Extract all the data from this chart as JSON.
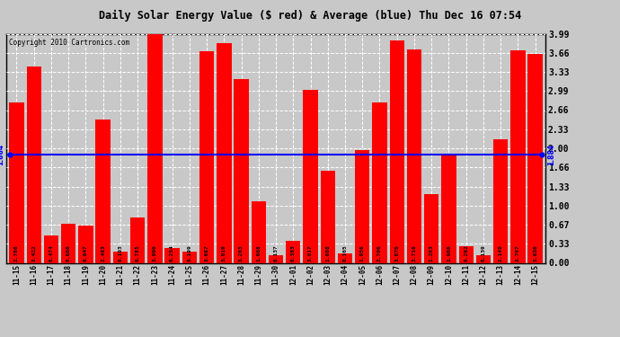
{
  "title": "Daily Solar Energy Value ($ red) & Average (blue) Thu Dec 16 07:54",
  "copyright": "Copyright 2010 Cartronics.com",
  "average": 1.884,
  "average_label": "1.884",
  "bar_color": "#FF0000",
  "average_color": "#0000FF",
  "background_color": "#C8C8C8",
  "plot_bg_color": "#C8C8C8",
  "grid_color": "#FFFFFF",
  "ylim": [
    0.0,
    3.99
  ],
  "yticks": [
    0.0,
    0.33,
    0.67,
    1.0,
    1.33,
    1.66,
    2.0,
    2.33,
    2.66,
    2.99,
    3.33,
    3.66,
    3.99
  ],
  "categories": [
    "11-15",
    "11-16",
    "11-17",
    "11-18",
    "11-19",
    "11-20",
    "11-21",
    "11-22",
    "11-23",
    "11-24",
    "11-25",
    "11-26",
    "11-27",
    "11-28",
    "11-29",
    "11-30",
    "12-01",
    "12-02",
    "12-03",
    "12-04",
    "12-05",
    "12-06",
    "12-07",
    "12-08",
    "12-09",
    "12-10",
    "12-11",
    "12-12",
    "12-13",
    "12-14",
    "12-15"
  ],
  "values": [
    2.786,
    3.422,
    0.474,
    0.686,
    0.647,
    2.493,
    0.193,
    0.785,
    3.99,
    0.254,
    0.199,
    3.687,
    3.819,
    3.203,
    1.068,
    0.137,
    0.383,
    3.017,
    1.608,
    0.165,
    1.956,
    2.796,
    3.87,
    3.716,
    1.203,
    1.908,
    0.292,
    0.139,
    2.149,
    3.707,
    3.636
  ]
}
